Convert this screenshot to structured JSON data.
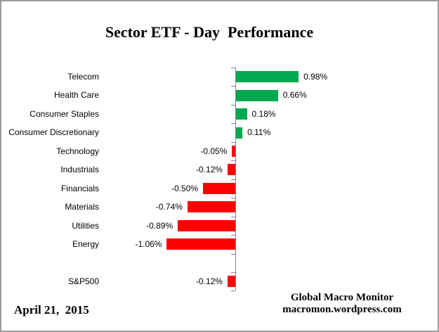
{
  "chart_data": {
    "type": "bar",
    "orientation": "horizontal",
    "title": "Sector ETF - Day  Performance",
    "categories": [
      "Telecom",
      "Health Care",
      "Consumer Staples",
      "Consumer Discretionary",
      "Technology",
      "Industrials",
      "Financials",
      "Materials",
      "Utilities",
      "Energy",
      "",
      "S&P500"
    ],
    "values": [
      0.98,
      0.66,
      0.18,
      0.11,
      -0.05,
      -0.12,
      -0.5,
      -0.74,
      -0.89,
      -1.06,
      null,
      -0.12
    ],
    "value_labels": [
      "0.98%",
      "0.66%",
      "0.18%",
      "0.11%",
      "-0.05%",
      "-0.12%",
      "-0.50%",
      "-0.74%",
      "-0.89%",
      "-1.06%",
      "",
      "-0.12%"
    ],
    "xlim": [
      -1.06,
      0.98
    ],
    "grid": false,
    "legend": false,
    "colors": {
      "positive_bar": "#00A84F",
      "negative_bar": "#FF0000",
      "axis": "#808080",
      "text": "#000000"
    }
  },
  "footer": {
    "date": "April 21,  2015",
    "attribution_line1": "Global Macro Monitor",
    "attribution_line2": "macromon.wordpress.com"
  }
}
